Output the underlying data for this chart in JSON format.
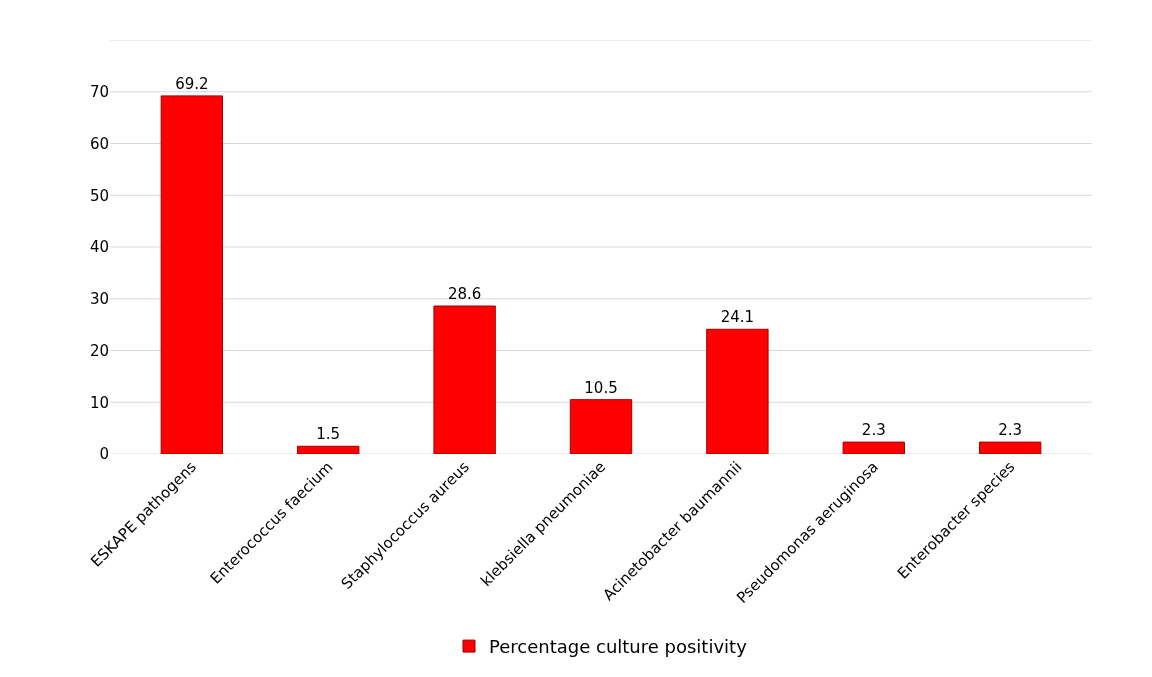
{
  "chart_data": {
    "type": "bar",
    "categories": [
      "ESKAPE pathogens",
      "Enterococcus faecium",
      "Staphylococcus aureus",
      "klebsiella pneumoniae",
      "Acinetobacter baumannii",
      "Pseudomonas aeruginosa",
      "Enterobacter species"
    ],
    "series": [
      {
        "name": "Percentage culture positivity",
        "color": "#ff0000",
        "values": [
          69.2,
          1.5,
          28.6,
          10.5,
          24.1,
          2.3,
          2.3
        ]
      }
    ],
    "ylim": [
      0,
      80
    ],
    "yticks": [
      0,
      10,
      20,
      30,
      40,
      50,
      60,
      70,
      {
        "value": 80,
        "label": null
      }
    ],
    "grid": "y",
    "legend": "bottom",
    "data_labels": true
  }
}
